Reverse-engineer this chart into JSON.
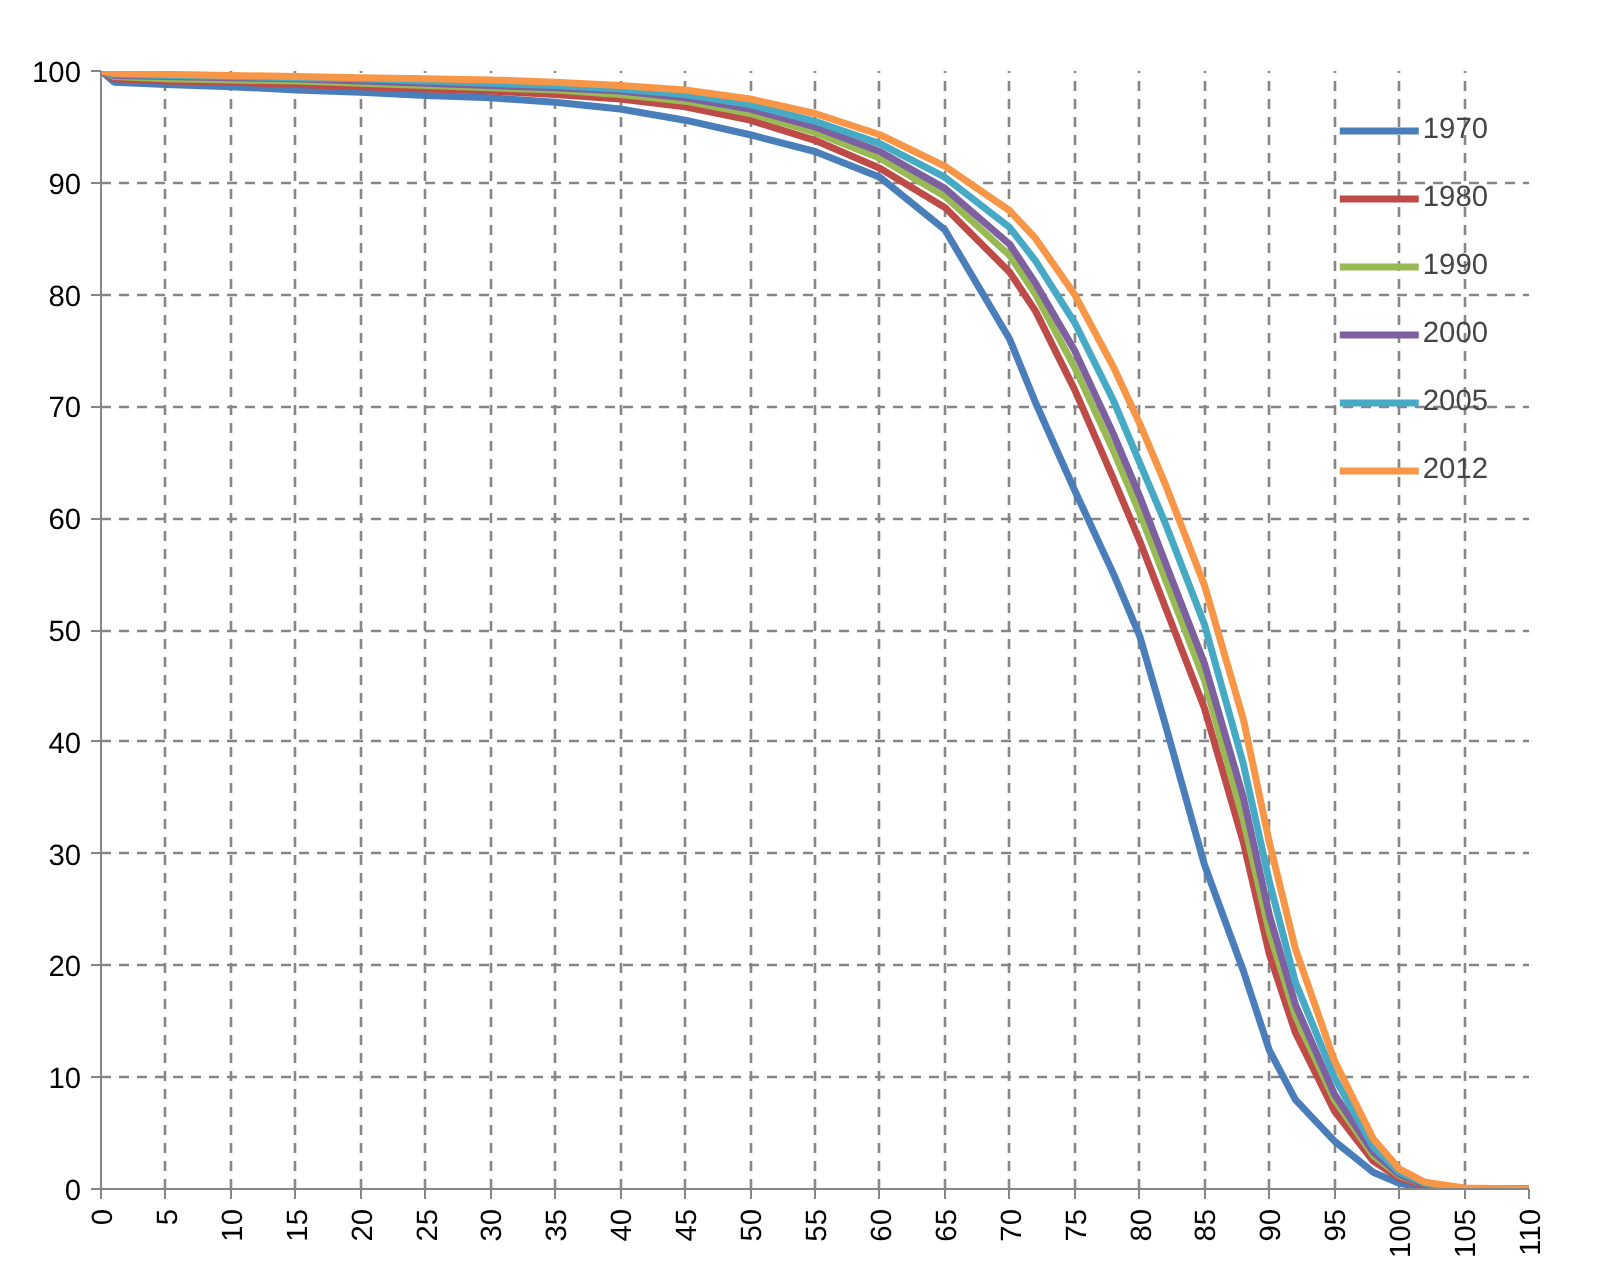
{
  "chart_data": {
    "type": "line",
    "x": [
      0,
      1,
      5,
      10,
      15,
      20,
      25,
      30,
      35,
      40,
      45,
      50,
      55,
      60,
      65,
      70,
      72,
      75,
      78,
      80,
      82,
      85,
      88,
      90,
      92,
      95,
      98,
      100,
      102,
      105,
      110
    ],
    "series": [
      {
        "name": "1970",
        "color": "#4a7ebb",
        "values": [
          100,
          99,
          98.8,
          98.6,
          98.3,
          98.1,
          97.8,
          97.6,
          97.2,
          96.6,
          95.6,
          94.3,
          92.8,
          90.5,
          85.8,
          76,
          70.3,
          62.5,
          55,
          49.5,
          41.5,
          29,
          19.5,
          12.4,
          8,
          4.3,
          1.5,
          0.5,
          0.1,
          0,
          0
        ]
      },
      {
        "name": "1980",
        "color": "#be4b48",
        "values": [
          100,
          99.3,
          99.1,
          99,
          98.8,
          98.6,
          98.4,
          98.2,
          97.9,
          97.5,
          96.8,
          95.6,
          93.8,
          91.3,
          87.8,
          82,
          78.5,
          71.5,
          63.5,
          58,
          52,
          43,
          31,
          21,
          14,
          7,
          2.5,
          1,
          0.3,
          0,
          0
        ]
      },
      {
        "name": "1990",
        "color": "#98b954",
        "values": [
          100,
          99.5,
          99.3,
          99.2,
          99.1,
          98.9,
          98.7,
          98.5,
          98.3,
          97.9,
          97.3,
          96.2,
          94.5,
          92.2,
          88.8,
          83.5,
          80,
          73.5,
          66,
          60.5,
          54.5,
          45.5,
          33,
          23,
          15.5,
          8,
          3,
          1.2,
          0.4,
          0,
          0
        ]
      },
      {
        "name": "2000",
        "color": "#7d60a0",
        "values": [
          100,
          99.6,
          99.5,
          99.4,
          99.3,
          99.1,
          98.9,
          98.7,
          98.5,
          98.2,
          97.6,
          96.6,
          95,
          92.8,
          89.5,
          84.5,
          81,
          75,
          67.5,
          62,
          56,
          47,
          35,
          24.5,
          16.5,
          8.5,
          3.3,
          1.3,
          0.4,
          0,
          0
        ]
      },
      {
        "name": "2005",
        "color": "#46aac5",
        "values": [
          100,
          99.7,
          99.6,
          99.5,
          99.4,
          99.3,
          99.1,
          98.9,
          98.7,
          98.4,
          97.9,
          97,
          95.5,
          93.5,
          90.5,
          86,
          83,
          77.5,
          70.5,
          65,
          59.5,
          50.5,
          38,
          27.5,
          18.5,
          10,
          3.8,
          1.5,
          0.5,
          0,
          0
        ]
      },
      {
        "name": "2012",
        "color": "#f79646",
        "values": [
          100,
          99.8,
          99.7,
          99.6,
          99.5,
          99.4,
          99.3,
          99.2,
          99,
          98.7,
          98.3,
          97.5,
          96.2,
          94.3,
          91.5,
          87.5,
          85,
          80,
          73.5,
          68.5,
          63,
          54,
          42,
          31,
          21.5,
          11.5,
          4.5,
          1.8,
          0.6,
          0.1,
          0
        ]
      }
    ],
    "xlim": [
      0,
      110
    ],
    "xticks": [
      0,
      5,
      10,
      15,
      20,
      25,
      30,
      35,
      40,
      45,
      50,
      55,
      60,
      65,
      70,
      75,
      80,
      85,
      90,
      95,
      100,
      105,
      110
    ],
    "ylim": [
      0,
      100
    ],
    "yticks": [
      0,
      10,
      20,
      30,
      40,
      50,
      60,
      70,
      80,
      90,
      100
    ],
    "grid": true,
    "legend": "top right",
    "line_style": "solid"
  }
}
